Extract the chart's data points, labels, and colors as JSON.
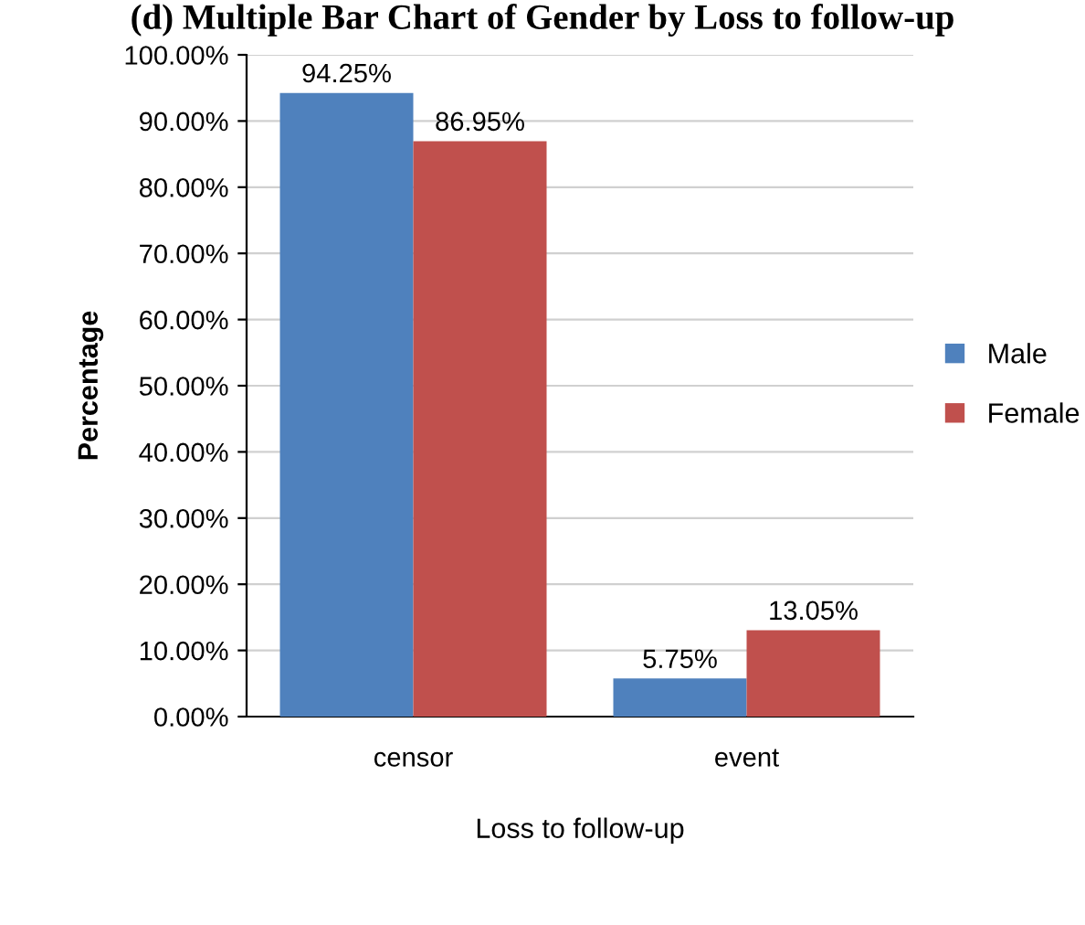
{
  "chart_data": {
    "type": "bar",
    "title": "(d) Multiple Bar Chart of Gender by Loss to follow-up",
    "xlabel": "Loss to follow-up",
    "ylabel": "Percentage",
    "categories": [
      "censor",
      "event"
    ],
    "series": [
      {
        "name": "Male",
        "color": "#4f81bd",
        "values": [
          94.25,
          5.75
        ],
        "value_labels": [
          "94.25%",
          "5.75%"
        ]
      },
      {
        "name": "Female",
        "color": "#c0504d",
        "values": [
          86.95,
          13.05
        ],
        "value_labels": [
          "86.95%",
          "13.05%"
        ]
      }
    ],
    "ylim": [
      0,
      100
    ],
    "yticks": [
      {
        "value": 0,
        "label": "0.00%"
      },
      {
        "value": 10,
        "label": "10.00%"
      },
      {
        "value": 20,
        "label": "20.00%"
      },
      {
        "value": 30,
        "label": "30.00%"
      },
      {
        "value": 40,
        "label": "40.00%"
      },
      {
        "value": 50,
        "label": "50.00%"
      },
      {
        "value": 60,
        "label": "60.00%"
      },
      {
        "value": 70,
        "label": "70.00%"
      },
      {
        "value": 80,
        "label": "80.00%"
      },
      {
        "value": 90,
        "label": "90.00%"
      },
      {
        "value": 100,
        "label": "100.00%"
      }
    ],
    "grid": "y",
    "legend": "right"
  }
}
